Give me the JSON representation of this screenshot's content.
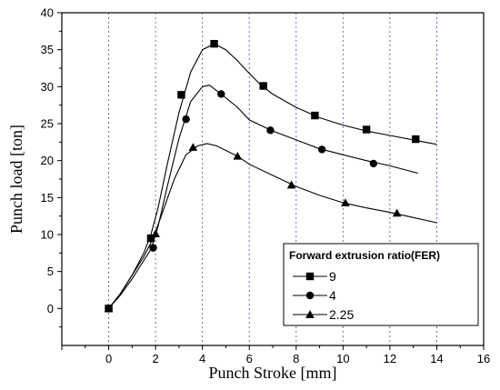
{
  "chart_data": {
    "type": "line",
    "xlabel": "Punch Stroke [mm]",
    "ylabel": "Punch load [ton]",
    "xlim": [
      -2,
      16
    ],
    "ylim": [
      -5,
      40
    ],
    "x_ticks": [
      -2,
      0,
      2,
      4,
      6,
      8,
      10,
      12,
      14,
      16
    ],
    "x_tick_labels": [
      "",
      "0",
      "2",
      "4",
      "6",
      "8",
      "10",
      "12",
      "14",
      "16"
    ],
    "y_ticks": [
      0,
      5,
      10,
      15,
      20,
      25,
      30,
      35,
      40
    ],
    "y_tick_labels": [
      "0",
      "5",
      "10",
      "15",
      "20",
      "25",
      "30",
      "35",
      "40"
    ],
    "vertical_grid": [
      0,
      2,
      4,
      6,
      8,
      10,
      12,
      14
    ],
    "grid": "vertical dotted",
    "legend": {
      "title": "Forward extrusion ratio(FER)",
      "placement": "bottom-right"
    },
    "series": [
      {
        "name": "9",
        "marker": "square",
        "x": [
          0,
          0.5,
          1.0,
          1.5,
          1.8,
          2.1,
          2.5,
          3.0,
          3.5,
          4.0,
          4.5,
          5.0,
          5.5,
          6.0,
          6.5,
          7.0,
          8.0,
          9.0,
          10.0,
          11.0,
          12.0,
          13.0,
          14.0
        ],
        "y": [
          0,
          2.0,
          4.5,
          7.5,
          10.0,
          13.5,
          19.5,
          26.5,
          32.0,
          35.0,
          35.8,
          35.0,
          33.5,
          31.8,
          30.2,
          29.0,
          27.2,
          25.8,
          24.8,
          24.0,
          23.4,
          22.8,
          22.2
        ],
        "marker_points": [
          {
            "x": 0,
            "y": 0
          },
          {
            "x": 1.8,
            "y": 9.5
          },
          {
            "x": 3.1,
            "y": 28.9
          },
          {
            "x": 4.5,
            "y": 35.8
          },
          {
            "x": 6.6,
            "y": 30.1
          },
          {
            "x": 8.8,
            "y": 26.1
          },
          {
            "x": 11.0,
            "y": 24.2
          },
          {
            "x": 13.1,
            "y": 22.9
          }
        ]
      },
      {
        "name": "4",
        "marker": "circle",
        "x": [
          0,
          0.5,
          1.0,
          1.5,
          1.8,
          2.1,
          2.5,
          3.0,
          3.5,
          4.0,
          4.3,
          4.8,
          5.5,
          6.0,
          7.0,
          8.0,
          9.0,
          10.0,
          11.0,
          12.0,
          13.2
        ],
        "y": [
          0,
          1.8,
          4.0,
          6.5,
          8.0,
          11.0,
          16.5,
          23.0,
          28.0,
          30.0,
          30.2,
          29.0,
          27.2,
          25.5,
          24.0,
          22.8,
          21.6,
          20.8,
          20.0,
          19.3,
          18.3
        ],
        "marker_points": [
          {
            "x": 0,
            "y": 0
          },
          {
            "x": 1.9,
            "y": 8.2
          },
          {
            "x": 3.3,
            "y": 25.6
          },
          {
            "x": 4.8,
            "y": 29.0
          },
          {
            "x": 6.9,
            "y": 24.1
          },
          {
            "x": 9.1,
            "y": 21.5
          },
          {
            "x": 11.3,
            "y": 19.6
          }
        ]
      },
      {
        "name": "2.25",
        "marker": "triangle",
        "x": [
          0,
          0.5,
          1.0,
          1.5,
          1.9,
          2.3,
          2.8,
          3.3,
          3.8,
          4.2,
          4.6,
          5.5,
          6.0,
          7.0,
          8.0,
          9.0,
          10.0,
          11.0,
          12.0,
          13.0,
          14.0
        ],
        "y": [
          0,
          2.0,
          4.5,
          7.0,
          9.5,
          13.0,
          17.5,
          20.8,
          22.0,
          22.3,
          22.0,
          20.6,
          19.5,
          18.0,
          16.5,
          15.3,
          14.3,
          13.6,
          13.0,
          12.3,
          11.6
        ],
        "marker_points": [
          {
            "x": 0,
            "y": 0
          },
          {
            "x": 2.0,
            "y": 10.1
          },
          {
            "x": 3.6,
            "y": 21.8
          },
          {
            "x": 5.5,
            "y": 20.6
          },
          {
            "x": 7.8,
            "y": 16.7
          },
          {
            "x": 10.1,
            "y": 14.3
          },
          {
            "x": 12.3,
            "y": 12.9
          }
        ]
      }
    ]
  }
}
